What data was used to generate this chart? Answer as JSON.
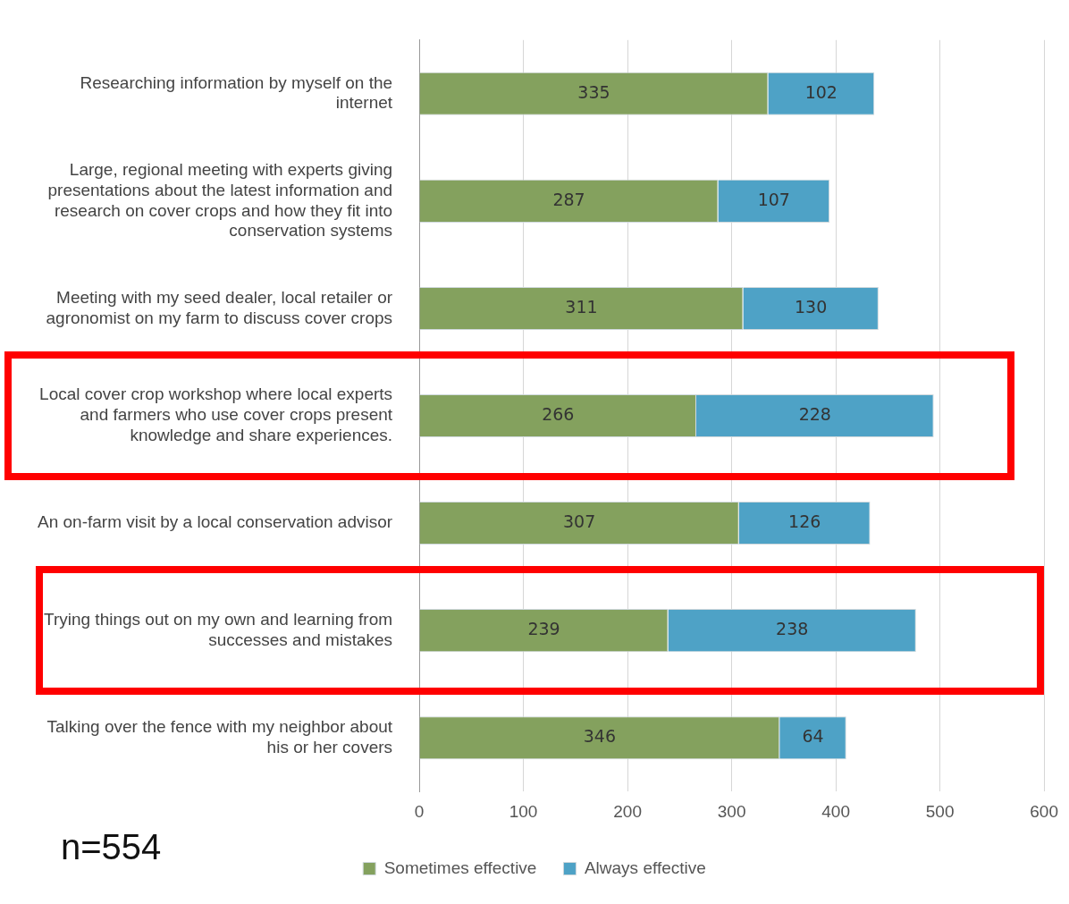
{
  "chart_data": {
    "type": "bar",
    "orientation": "horizontal",
    "stacked": true,
    "categories": [
      "Researching information by myself on the internet",
      "Large, regional meeting with experts giving presentations about the latest information and research on cover crops and how they fit into conservation systems",
      "Meeting with my seed dealer, local retailer or agronomist on my farm to discuss cover crops",
      "Local cover crop workshop where local experts and farmers who use cover crops present knowledge and share experiences.",
      "An on-farm visit by a local conservation advisor",
      "Trying things out on my own and learning from successes and mistakes",
      "Talking over the fence with my neighbor about his or her covers"
    ],
    "series": [
      {
        "name": "Sometimes effective",
        "color": "#84a15e",
        "values": [
          335,
          287,
          311,
          266,
          307,
          239,
          346
        ]
      },
      {
        "name": "Always effective",
        "color": "#4ea2c6",
        "values": [
          102,
          107,
          130,
          228,
          126,
          238,
          64
        ]
      }
    ],
    "xlim": [
      0,
      600
    ],
    "xticks": [
      0,
      100,
      200,
      300,
      400,
      500,
      600
    ],
    "grid": "x",
    "legend": "bottom",
    "data_labels": true,
    "annotations": [
      "n=554"
    ]
  }
}
